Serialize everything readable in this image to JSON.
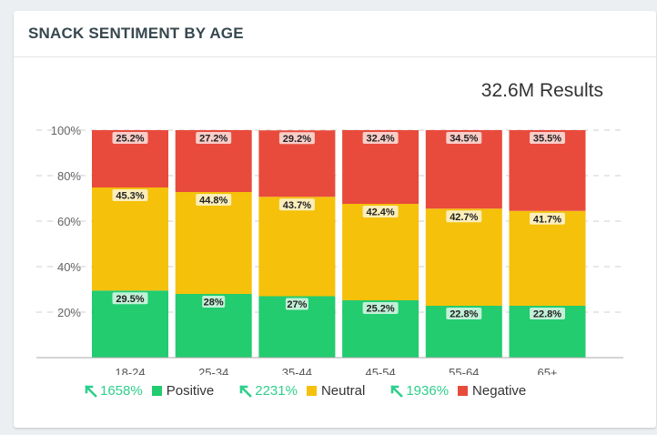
{
  "card": {
    "title": "SNACK SENTIMENT BY AGE",
    "results": "32.6M Results"
  },
  "chart_data": {
    "type": "bar",
    "stacked": true,
    "categories": [
      "18-24",
      "25-34",
      "35-44",
      "45-54",
      "55-64",
      "65+"
    ],
    "series": [
      {
        "name": "Positive",
        "values": [
          29.5,
          28,
          27,
          25.2,
          22.8,
          22.8
        ],
        "color": "#22cc6f"
      },
      {
        "name": "Neutral",
        "values": [
          45.3,
          44.8,
          43.7,
          42.4,
          42.7,
          41.7
        ],
        "color": "#f5c10a"
      },
      {
        "name": "Negative",
        "values": [
          25.2,
          27.2,
          29.2,
          32.4,
          34.5,
          35.5
        ],
        "color": "#e84b3c"
      }
    ],
    "y_ticks": [
      "20%",
      "40%",
      "60%",
      "80%",
      "100%"
    ],
    "ylim": [
      0,
      100
    ],
    "grid": true,
    "legend_position": "bottom"
  },
  "legend": [
    {
      "trend": "1658%",
      "label": "Positive",
      "color": "#22cc6f"
    },
    {
      "trend": "2231%",
      "label": "Neutral",
      "color": "#f5c10a"
    },
    {
      "trend": "1936%",
      "label": "Negative",
      "color": "#e84b3c"
    }
  ],
  "colors": {
    "trend": "#2ecf8b",
    "grid": "#cfcfcf"
  }
}
